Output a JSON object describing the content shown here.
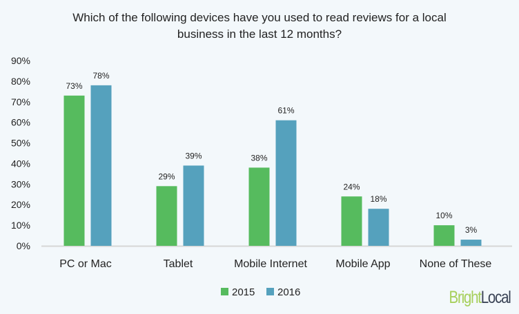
{
  "chart_data": {
    "type": "bar",
    "title": "Which of the following devices have you used to read reviews for a local business in the last 12 months?",
    "title_lines": [
      "Which of the following devices have you used to read reviews for a local",
      "business in the last 12 months?"
    ],
    "categories": [
      "PC or Mac",
      "Tablet",
      "Mobile Internet",
      "Mobile App",
      "None of These"
    ],
    "series": [
      {
        "name": "2015",
        "values": [
          73,
          29,
          38,
          24,
          10
        ],
        "labels": [
          "73%",
          "29%",
          "38%",
          "24%",
          "10%"
        ],
        "color": "#56bb5e"
      },
      {
        "name": "2016",
        "values": [
          78,
          39,
          61,
          18,
          3
        ],
        "labels": [
          "78%",
          "39%",
          "61%",
          "18%",
          "3%"
        ],
        "color": "#55a1bd"
      }
    ],
    "ylim": [
      0,
      90
    ],
    "yticks": [
      "0%",
      "10%",
      "20%",
      "30%",
      "40%",
      "50%",
      "60%",
      "70%",
      "80%",
      "90%"
    ],
    "grid": false,
    "legend": "bottom"
  },
  "branding": {
    "logo_part1": "Bright",
    "logo_part2": "Local"
  }
}
